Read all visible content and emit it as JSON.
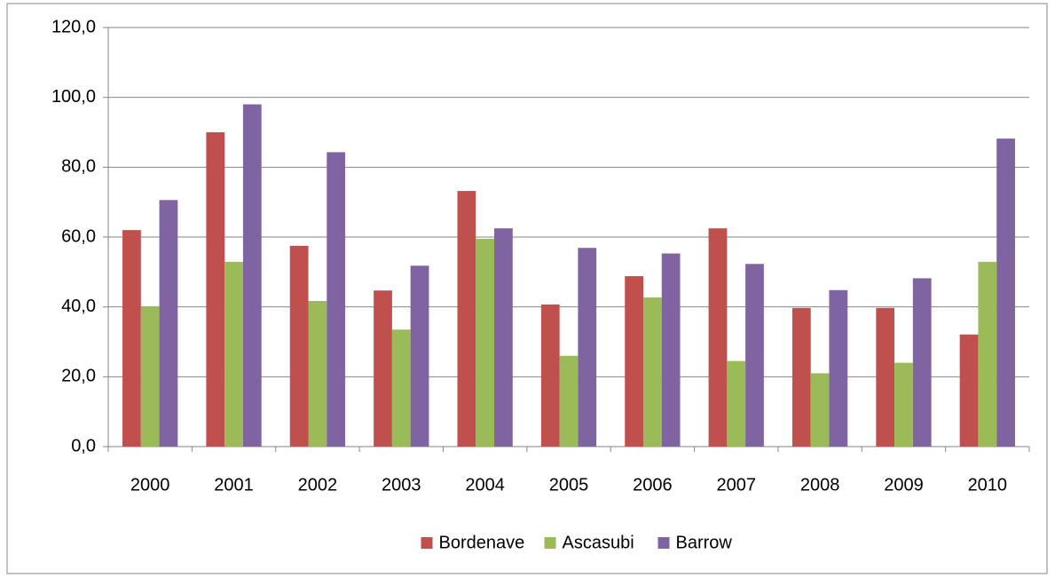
{
  "chart_data": {
    "type": "bar",
    "categories": [
      "2000",
      "2001",
      "2002",
      "2003",
      "2004",
      "2005",
      "2006",
      "2007",
      "2008",
      "2009",
      "2010"
    ],
    "series": [
      {
        "name": "Bordenave",
        "color": "#c0504d",
        "values": [
          62,
          90,
          57.5,
          44.7,
          73.2,
          40.7,
          48.8,
          62.5,
          39.7,
          39.7,
          32.1
        ]
      },
      {
        "name": "Ascasubi",
        "color": "#9bbb59",
        "values": [
          40.2,
          52.9,
          41.7,
          33.5,
          59.5,
          26,
          42.7,
          24.5,
          21,
          24,
          52.9
        ]
      },
      {
        "name": "Barrow",
        "color": "#8064a2",
        "values": [
          70.6,
          98,
          84.3,
          51.8,
          62.5,
          56.9,
          55.3,
          52.3,
          44.8,
          48.2,
          88.2
        ]
      }
    ],
    "ylim": [
      0,
      120
    ],
    "yticks": [
      {
        "value": 0,
        "label": "0,0"
      },
      {
        "value": 20,
        "label": "20,0"
      },
      {
        "value": 40,
        "label": "40,0"
      },
      {
        "value": 60,
        "label": "60,0"
      },
      {
        "value": 80,
        "label": "80,0"
      },
      {
        "value": 100,
        "label": "100,0"
      },
      {
        "value": 120,
        "label": "120,0"
      }
    ],
    "grid": true,
    "legend": "bottom"
  }
}
